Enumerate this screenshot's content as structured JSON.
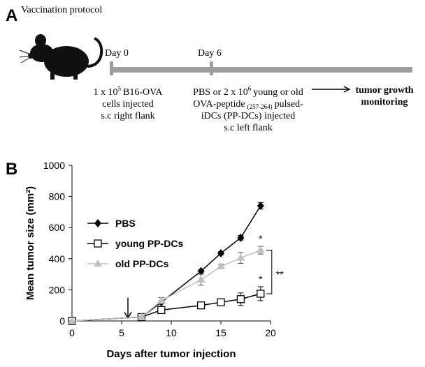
{
  "panel_a": {
    "label": "A",
    "title": "Vaccination protocol",
    "day0": "Day 0",
    "day6": "Day 6",
    "day0_note": {
      "line1a": "1 x 10",
      "line1_sup": "5",
      "line1b": "B16-OVA",
      "line2": "cells injected",
      "line3": "s.c right flank"
    },
    "day6_note": {
      "line1a": "PBS or 2 x 10",
      "line1_sup": "6",
      "line1b": "young or old",
      "line2a": "OVA-peptide",
      "line2_sub": "(257-264)",
      "line2b": "pulsed-",
      "line3": "iDCs (PP-DCs) injected",
      "line4": "s.c left flank"
    },
    "outcome": [
      "tumor growth",
      "monitoring"
    ]
  },
  "chart_data": {
    "type": "line",
    "panel_label": "B",
    "xlabel": "Days after tumor injection",
    "ylabel": "Mean tumor size (mm²)",
    "x": [
      0,
      7,
      9,
      13,
      15,
      17,
      19
    ],
    "xlim": [
      0,
      20
    ],
    "xticks": [
      0,
      5,
      10,
      15,
      20
    ],
    "ylim": [
      0,
      1000
    ],
    "yticks": [
      0,
      200,
      400,
      600,
      800,
      1000
    ],
    "legend": "center left",
    "series": [
      {
        "name": "PBS",
        "color": "#000000",
        "marker": "diamond",
        "values": [
          0,
          25,
          120,
          320,
          435,
          535,
          740
        ],
        "errors": [
          0,
          5,
          10,
          10,
          10,
          15,
          20
        ]
      },
      {
        "name": "young PP-DCs",
        "color": "#000000",
        "marker": "open-square",
        "values": [
          0,
          25,
          70,
          100,
          120,
          140,
          175
        ],
        "errors": [
          0,
          5,
          10,
          20,
          15,
          40,
          45
        ]
      },
      {
        "name": "old PP-DCs",
        "color": "#c0c0c0",
        "marker": "triangle",
        "values": [
          0,
          25,
          130,
          265,
          350,
          405,
          455
        ],
        "errors": [
          0,
          5,
          20,
          35,
          15,
          35,
          25
        ]
      }
    ],
    "annotations": [
      "*",
      "*",
      "**"
    ]
  }
}
